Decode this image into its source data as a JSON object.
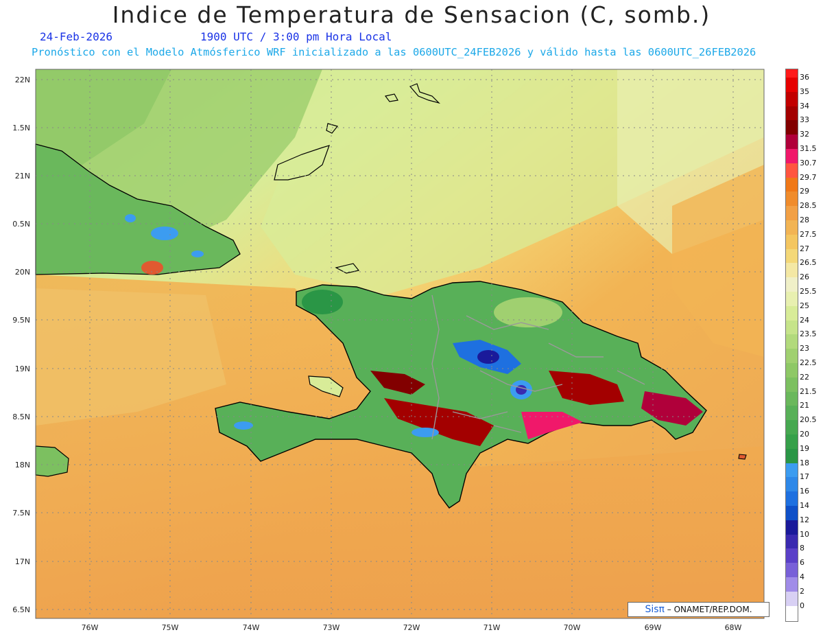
{
  "header": {
    "title": "Indice de Temperatura de Sensacion (C, somb.)",
    "date": "24-Feb-2026",
    "time": "1900 UTC / 3:00 pm Hora Local",
    "model_line": "Pronóstico con el Modelo Atmósferico WRF inicializado a las 0600UTC_24FEB2026 y válido hasta las  0600UTC_26FEB2026"
  },
  "axes": {
    "lat_labels": [
      "22N",
      "1.5N",
      "21N",
      "0.5N",
      "20N",
      "9.5N",
      "19N",
      "8.5N",
      "18N",
      "7.5N",
      "17N",
      "6.5N"
    ],
    "lon_labels": [
      "76W",
      "75W",
      "74W",
      "73W",
      "72W",
      "71W",
      "70W",
      "69W",
      "68W"
    ]
  },
  "colorbar": {
    "labels": [
      "36",
      "35",
      "34",
      "33",
      "32",
      "31.5",
      "30.7",
      "29.7",
      "29",
      "28.5",
      "28",
      "27.5",
      "27",
      "26.5",
      "26",
      "25.5",
      "25",
      "24",
      "23.5",
      "23",
      "22.5",
      "22",
      "21.5",
      "21",
      "20.5",
      "20",
      "19",
      "18",
      "17",
      "16",
      "14",
      "12",
      "10",
      "8",
      "6",
      "4",
      "2",
      "0"
    ],
    "colors": [
      "#ff1a1a",
      "#e60000",
      "#c20000",
      "#a30000",
      "#820000",
      "#b0003a",
      "#f0186a",
      "#ff5540",
      "#f07818",
      "#f08c2c",
      "#f2a045",
      "#f2b454",
      "#f4c660",
      "#f4d878",
      "#f4e8a4",
      "#f0f0c8",
      "#e8f0b0",
      "#d8ec98",
      "#c6e48a",
      "#b2da7c",
      "#a0d070",
      "#8ec866",
      "#7cc060",
      "#6ab85c",
      "#58b058",
      "#46a850",
      "#36a04a",
      "#2a9646",
      "#3c9cf0",
      "#2e88e8",
      "#1e70e0",
      "#0f50c8",
      "#1a1a9a",
      "#3a2ab0",
      "#5a40c8",
      "#7860d8",
      "#a08ce8",
      "#d8d0f4"
    ]
  },
  "credit": {
    "brand": "Sisπ",
    "text": "– ONAMET/REP.DOM."
  },
  "map": {
    "ocean_color": "#eca555",
    "land_color": "#58b058",
    "hot_color": "#a30000"
  }
}
